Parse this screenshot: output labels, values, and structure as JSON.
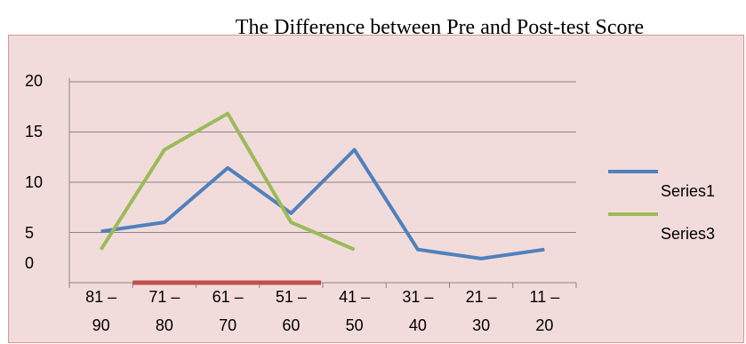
{
  "chart_data": {
    "type": "line",
    "title": "The Difference between Pre and Post-test Score",
    "categories": [
      [
        "81 –",
        "90"
      ],
      [
        "71 –",
        "80"
      ],
      [
        "61 –",
        "70"
      ],
      [
        "51 –",
        "60"
      ],
      [
        "41 –",
        "50"
      ],
      [
        "31 –",
        "40"
      ],
      [
        "21 –",
        "30"
      ],
      [
        "11 –",
        "20"
      ]
    ],
    "y_ticks": [
      "0",
      "5",
      "10",
      "15",
      "20"
    ],
    "ylim": [
      0,
      20
    ],
    "grid": true,
    "legend_position": "right",
    "series": [
      {
        "name": "Series1",
        "color": "#4f81bd",
        "values": [
          3.5,
          4.5,
          10.5,
          5.5,
          12.5,
          1.5,
          0.5,
          1.5
        ]
      },
      {
        "name": "Series3",
        "color": "#9bbb59",
        "values": [
          1.5,
          12.5,
          16.5,
          4.5,
          1.5,
          null,
          null,
          null
        ]
      }
    ],
    "axis_bar": {
      "color": "#c0504d",
      "from_category": 1,
      "to_category": 3
    }
  }
}
